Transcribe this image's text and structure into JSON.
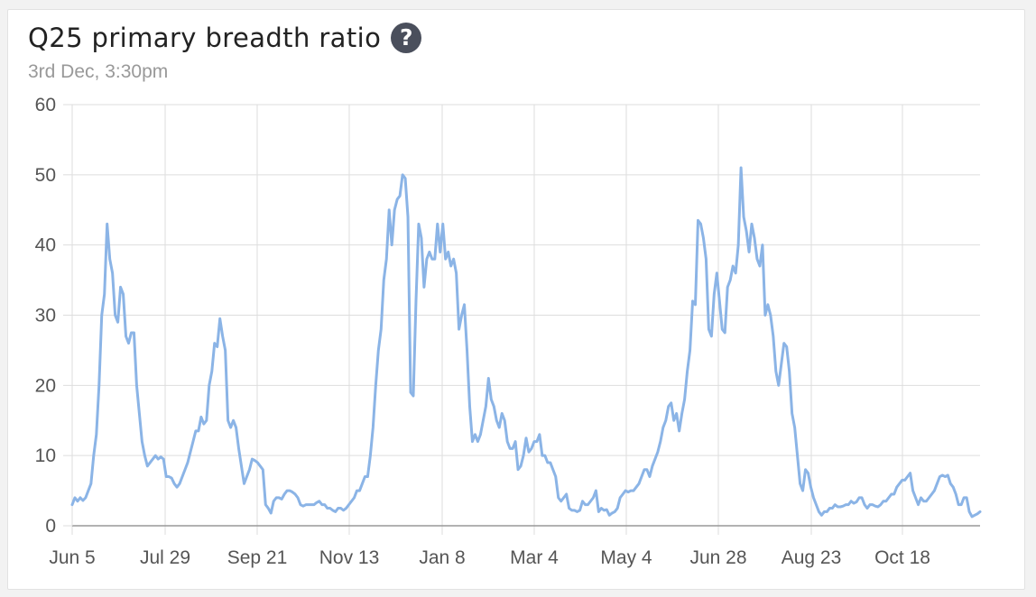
{
  "header": {
    "title": "Q25 primary breadth ratio",
    "help_icon": "question-circle-icon",
    "subtitle": "3rd Dec, 3:30pm"
  },
  "colors": {
    "line": "#8bb4e6",
    "grid": "#dddddd",
    "axis": "#999999",
    "help_icon": "#4a4f5c"
  },
  "chart_data": {
    "type": "line",
    "title": "Q25 primary breadth ratio",
    "xlabel": "",
    "ylabel": "",
    "ylim": [
      0,
      60
    ],
    "yticks": [
      0,
      10,
      20,
      30,
      40,
      50,
      60
    ],
    "x_ticks": [
      "Jun 5",
      "Jul 29",
      "Sep 21",
      "Nov 13",
      "Jan 8",
      "Mar 4",
      "May 4",
      "Jun 28",
      "Aug 23",
      "Oct 18"
    ],
    "grid": true,
    "legend": "none",
    "series": [
      {
        "values": [
          3,
          4,
          3.5,
          4,
          3.6,
          4,
          5,
          6,
          10,
          13,
          20,
          30,
          33,
          43,
          38,
          36,
          30,
          29,
          34,
          33,
          27,
          26,
          27.5,
          27.5,
          20,
          16,
          12,
          10,
          8.5,
          9,
          9.5,
          10,
          9.5,
          9.8,
          9.5,
          7,
          7,
          6.8,
          6,
          5.5,
          6,
          7,
          8,
          9,
          10.5,
          12,
          13.5,
          13.5,
          15.5,
          14.5,
          15,
          20,
          22,
          26,
          25.5,
          29.5,
          27,
          25,
          15,
          14,
          15,
          14,
          11,
          8.5,
          6,
          7,
          8,
          9.5,
          9.3,
          9,
          8.5,
          8,
          3,
          2.5,
          1.8,
          3.5,
          4,
          4,
          3.8,
          4.5,
          5,
          5,
          4.8,
          4.5,
          4,
          3,
          2.8,
          3,
          3,
          3,
          3,
          3.3,
          3.5,
          3,
          3,
          2.5,
          2.5,
          2.2,
          2,
          2.5,
          2.5,
          2.2,
          2.5,
          3,
          3.5,
          4,
          5,
          5,
          6,
          7,
          7,
          10,
          14,
          20,
          25,
          28,
          35,
          38,
          45,
          40,
          45,
          46.5,
          47,
          50,
          49.5,
          44,
          19,
          18.5,
          32,
          43,
          41,
          34,
          38,
          39,
          38,
          38,
          43,
          39,
          43,
          38,
          39,
          37,
          38,
          36,
          28,
          30,
          31.5,
          25,
          17,
          12,
          13,
          12,
          13,
          15,
          17,
          21,
          18,
          17,
          15,
          14,
          16,
          15,
          12,
          11,
          11,
          12,
          8,
          8.5,
          10,
          12.5,
          10.5,
          11,
          12,
          12,
          13,
          10,
          10,
          9,
          9,
          8,
          7,
          4,
          3.5,
          4,
          4.5,
          2.5,
          2.2,
          2.2,
          2,
          2.2,
          3.5,
          3,
          3,
          3.5,
          4,
          5,
          2,
          2.5,
          2.2,
          2.3,
          1.5,
          1.8,
          2,
          2.5,
          4,
          4.5,
          5,
          4.8,
          5,
          5,
          5.5,
          6,
          7,
          8,
          8,
          7,
          8.5,
          9.5,
          10.5,
          12,
          14,
          15,
          17,
          17.5,
          15,
          16,
          13.5,
          16,
          18,
          22,
          25,
          32,
          31.5,
          43.5,
          43,
          41,
          38,
          28,
          27,
          33,
          36,
          32,
          28,
          27.5,
          34,
          35,
          37,
          36,
          40,
          51,
          44,
          42,
          39,
          43,
          41,
          38,
          37,
          40,
          30,
          31.5,
          30,
          27,
          22,
          20,
          23,
          26,
          25.5,
          22,
          16,
          14,
          10,
          6,
          5,
          8,
          7.5,
          5.5,
          4,
          3,
          2,
          1.5,
          2,
          2,
          2.5,
          2.5,
          3,
          2.7,
          2.7,
          2.8,
          3,
          3,
          3.5,
          3.2,
          3.4,
          4,
          4,
          3,
          2.5,
          3,
          3,
          2.8,
          2.7,
          3,
          3.5,
          3.5,
          4,
          4.5,
          4.5,
          5.5,
          6,
          6.5,
          6.5,
          7,
          7.5,
          5,
          4,
          3,
          4,
          3.5,
          3.5,
          4,
          4.5,
          5,
          6,
          7,
          7.2,
          7,
          7.2,
          6,
          5.5,
          4.5,
          3,
          3,
          4,
          4,
          2,
          1.3,
          1.5,
          1.7,
          2
        ]
      }
    ]
  }
}
